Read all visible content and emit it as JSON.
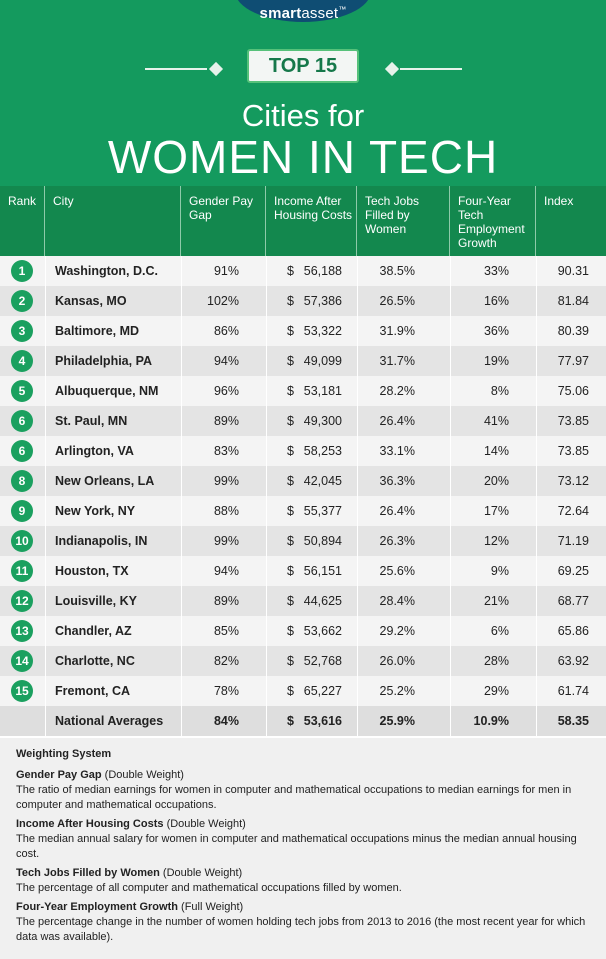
{
  "brand": {
    "logo_text_bold": "smart",
    "logo_text_light": "asset",
    "logo_tm": "™"
  },
  "header": {
    "badge": "TOP 15",
    "title_line1": "Cities for",
    "title_line2": "WOMEN IN TECH"
  },
  "colors": {
    "header_green": "#149a5e",
    "column_green": "#13884e",
    "rank_circle": "#1aa05f",
    "logo_navy": "#0f4d73"
  },
  "columns": [
    "Rank",
    "City",
    "Gender Pay Gap",
    "Income After Housing Costs",
    "Tech Jobs Filled by Women",
    "Four-Year Tech Employment Growth",
    "Index"
  ],
  "rows": [
    {
      "rank": "1",
      "city": "Washington, D.C.",
      "gap": "91%",
      "income": "56,188",
      "tech": "38.5%",
      "growth": "33%",
      "index": "90.31"
    },
    {
      "rank": "2",
      "city": "Kansas, MO",
      "gap": "102%",
      "income": "57,386",
      "tech": "26.5%",
      "growth": "16%",
      "index": "81.84"
    },
    {
      "rank": "3",
      "city": "Baltimore, MD",
      "gap": "86%",
      "income": "53,322",
      "tech": "31.9%",
      "growth": "36%",
      "index": "80.39"
    },
    {
      "rank": "4",
      "city": "Philadelphia, PA",
      "gap": "94%",
      "income": "49,099",
      "tech": "31.7%",
      "growth": "19%",
      "index": "77.97"
    },
    {
      "rank": "5",
      "city": "Albuquerque, NM",
      "gap": "96%",
      "income": "53,181",
      "tech": "28.2%",
      "growth": "8%",
      "index": "75.06"
    },
    {
      "rank": "6",
      "city": "St. Paul, MN",
      "gap": "89%",
      "income": "49,300",
      "tech": "26.4%",
      "growth": "41%",
      "index": "73.85"
    },
    {
      "rank": "6",
      "city": "Arlington, VA",
      "gap": "83%",
      "income": "58,253",
      "tech": "33.1%",
      "growth": "14%",
      "index": "73.85"
    },
    {
      "rank": "8",
      "city": "New Orleans, LA",
      "gap": "99%",
      "income": "42,045",
      "tech": "36.3%",
      "growth": "20%",
      "index": "73.12"
    },
    {
      "rank": "9",
      "city": "New York, NY",
      "gap": "88%",
      "income": "55,377",
      "tech": "26.4%",
      "growth": "17%",
      "index": "72.64"
    },
    {
      "rank": "10",
      "city": "Indianapolis, IN",
      "gap": "99%",
      "income": "50,894",
      "tech": "26.3%",
      "growth": "12%",
      "index": "71.19"
    },
    {
      "rank": "11",
      "city": "Houston, TX",
      "gap": "94%",
      "income": "56,151",
      "tech": "25.6%",
      "growth": "9%",
      "index": "69.25"
    },
    {
      "rank": "12",
      "city": "Louisville, KY",
      "gap": "89%",
      "income": "44,625",
      "tech": "28.4%",
      "growth": "21%",
      "index": "68.77"
    },
    {
      "rank": "13",
      "city": "Chandler, AZ",
      "gap": "85%",
      "income": "53,662",
      "tech": "29.2%",
      "growth": "6%",
      "index": "65.86"
    },
    {
      "rank": "14",
      "city": "Charlotte, NC",
      "gap": "82%",
      "income": "52,768",
      "tech": "26.0%",
      "growth": "28%",
      "index": "63.92"
    },
    {
      "rank": "15",
      "city": "Fremont, CA",
      "gap": "78%",
      "income": "65,227",
      "tech": "25.2%",
      "growth": "29%",
      "index": "61.74"
    }
  ],
  "averages": {
    "label": "National Averages",
    "gap": "84%",
    "income": "53,616",
    "tech": "25.9%",
    "growth": "10.9%",
    "index": "58.35"
  },
  "currency_symbol": "$",
  "weighting": {
    "title": "Weighting System",
    "items": [
      {
        "name": "Gender Pay Gap",
        "weight": "(Double Weight)",
        "desc": "The ratio of median earnings for women in computer and mathematical occupations to median earnings for men in computer and mathematical occupations."
      },
      {
        "name": "Income After Housing Costs",
        "weight": "(Double Weight)",
        "desc": "The median annual salary for women in computer and mathematical occupations minus the median annual housing cost."
      },
      {
        "name": "Tech Jobs Filled by Women",
        "weight": "(Double Weight)",
        "desc": "The percentage of all computer and mathematical occupations filled by women."
      },
      {
        "name": "Four-Year Employment Growth",
        "weight": "(Full Weight)",
        "desc": "The percentage change in the number of women holding tech jobs from 2013 to 2016 (the most recent year for which data was available)."
      }
    ]
  }
}
